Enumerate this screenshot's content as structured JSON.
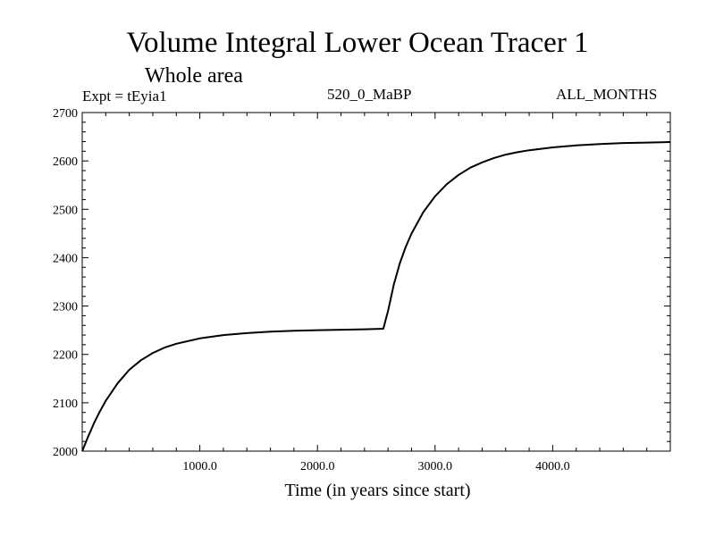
{
  "chart_data": {
    "type": "line",
    "title": "Volume Integral Lower Ocean Tracer 1",
    "subtitle": "Whole area",
    "experiment_label": "Expt = tEyia1",
    "period_label": "520_0_MaBP",
    "months_label": "ALL_MONTHS",
    "xlabel": "Time (in years since start)",
    "ylabel": "",
    "xlim": [
      0,
      5000
    ],
    "ylim": [
      2000,
      2700
    ],
    "x_ticks": [
      1000,
      2000,
      3000,
      4000
    ],
    "x_tick_labels": [
      "1000.0",
      "2000.0",
      "3000.0",
      "4000.0"
    ],
    "y_ticks": [
      2000,
      2100,
      2200,
      2300,
      2400,
      2500,
      2600,
      2700
    ],
    "y_tick_labels": [
      "2000",
      "2100",
      "2200",
      "2300",
      "2400",
      "2500",
      "2600",
      "2700"
    ],
    "grid": false,
    "series": [
      {
        "name": "Lower Ocean Tracer 1",
        "color": "#000000",
        "x": [
          0,
          50,
          100,
          150,
          200,
          300,
          400,
          500,
          600,
          700,
          800,
          1000,
          1200,
          1400,
          1600,
          1800,
          2000,
          2200,
          2400,
          2560,
          2600,
          2650,
          2700,
          2750,
          2800,
          2900,
          3000,
          3100,
          3200,
          3300,
          3400,
          3500,
          3600,
          3700,
          3800,
          4000,
          4200,
          4400,
          4600,
          4800,
          5000
        ],
        "values": [
          2000,
          2030,
          2058,
          2082,
          2104,
          2140,
          2168,
          2188,
          2203,
          2214,
          2222,
          2233,
          2240,
          2244,
          2247,
          2249,
          2250,
          2251,
          2252,
          2253,
          2290,
          2345,
          2388,
          2422,
          2450,
          2494,
          2527,
          2552,
          2571,
          2586,
          2597,
          2606,
          2613,
          2618,
          2622,
          2628,
          2632,
          2635,
          2637,
          2638,
          2639
        ]
      }
    ]
  }
}
